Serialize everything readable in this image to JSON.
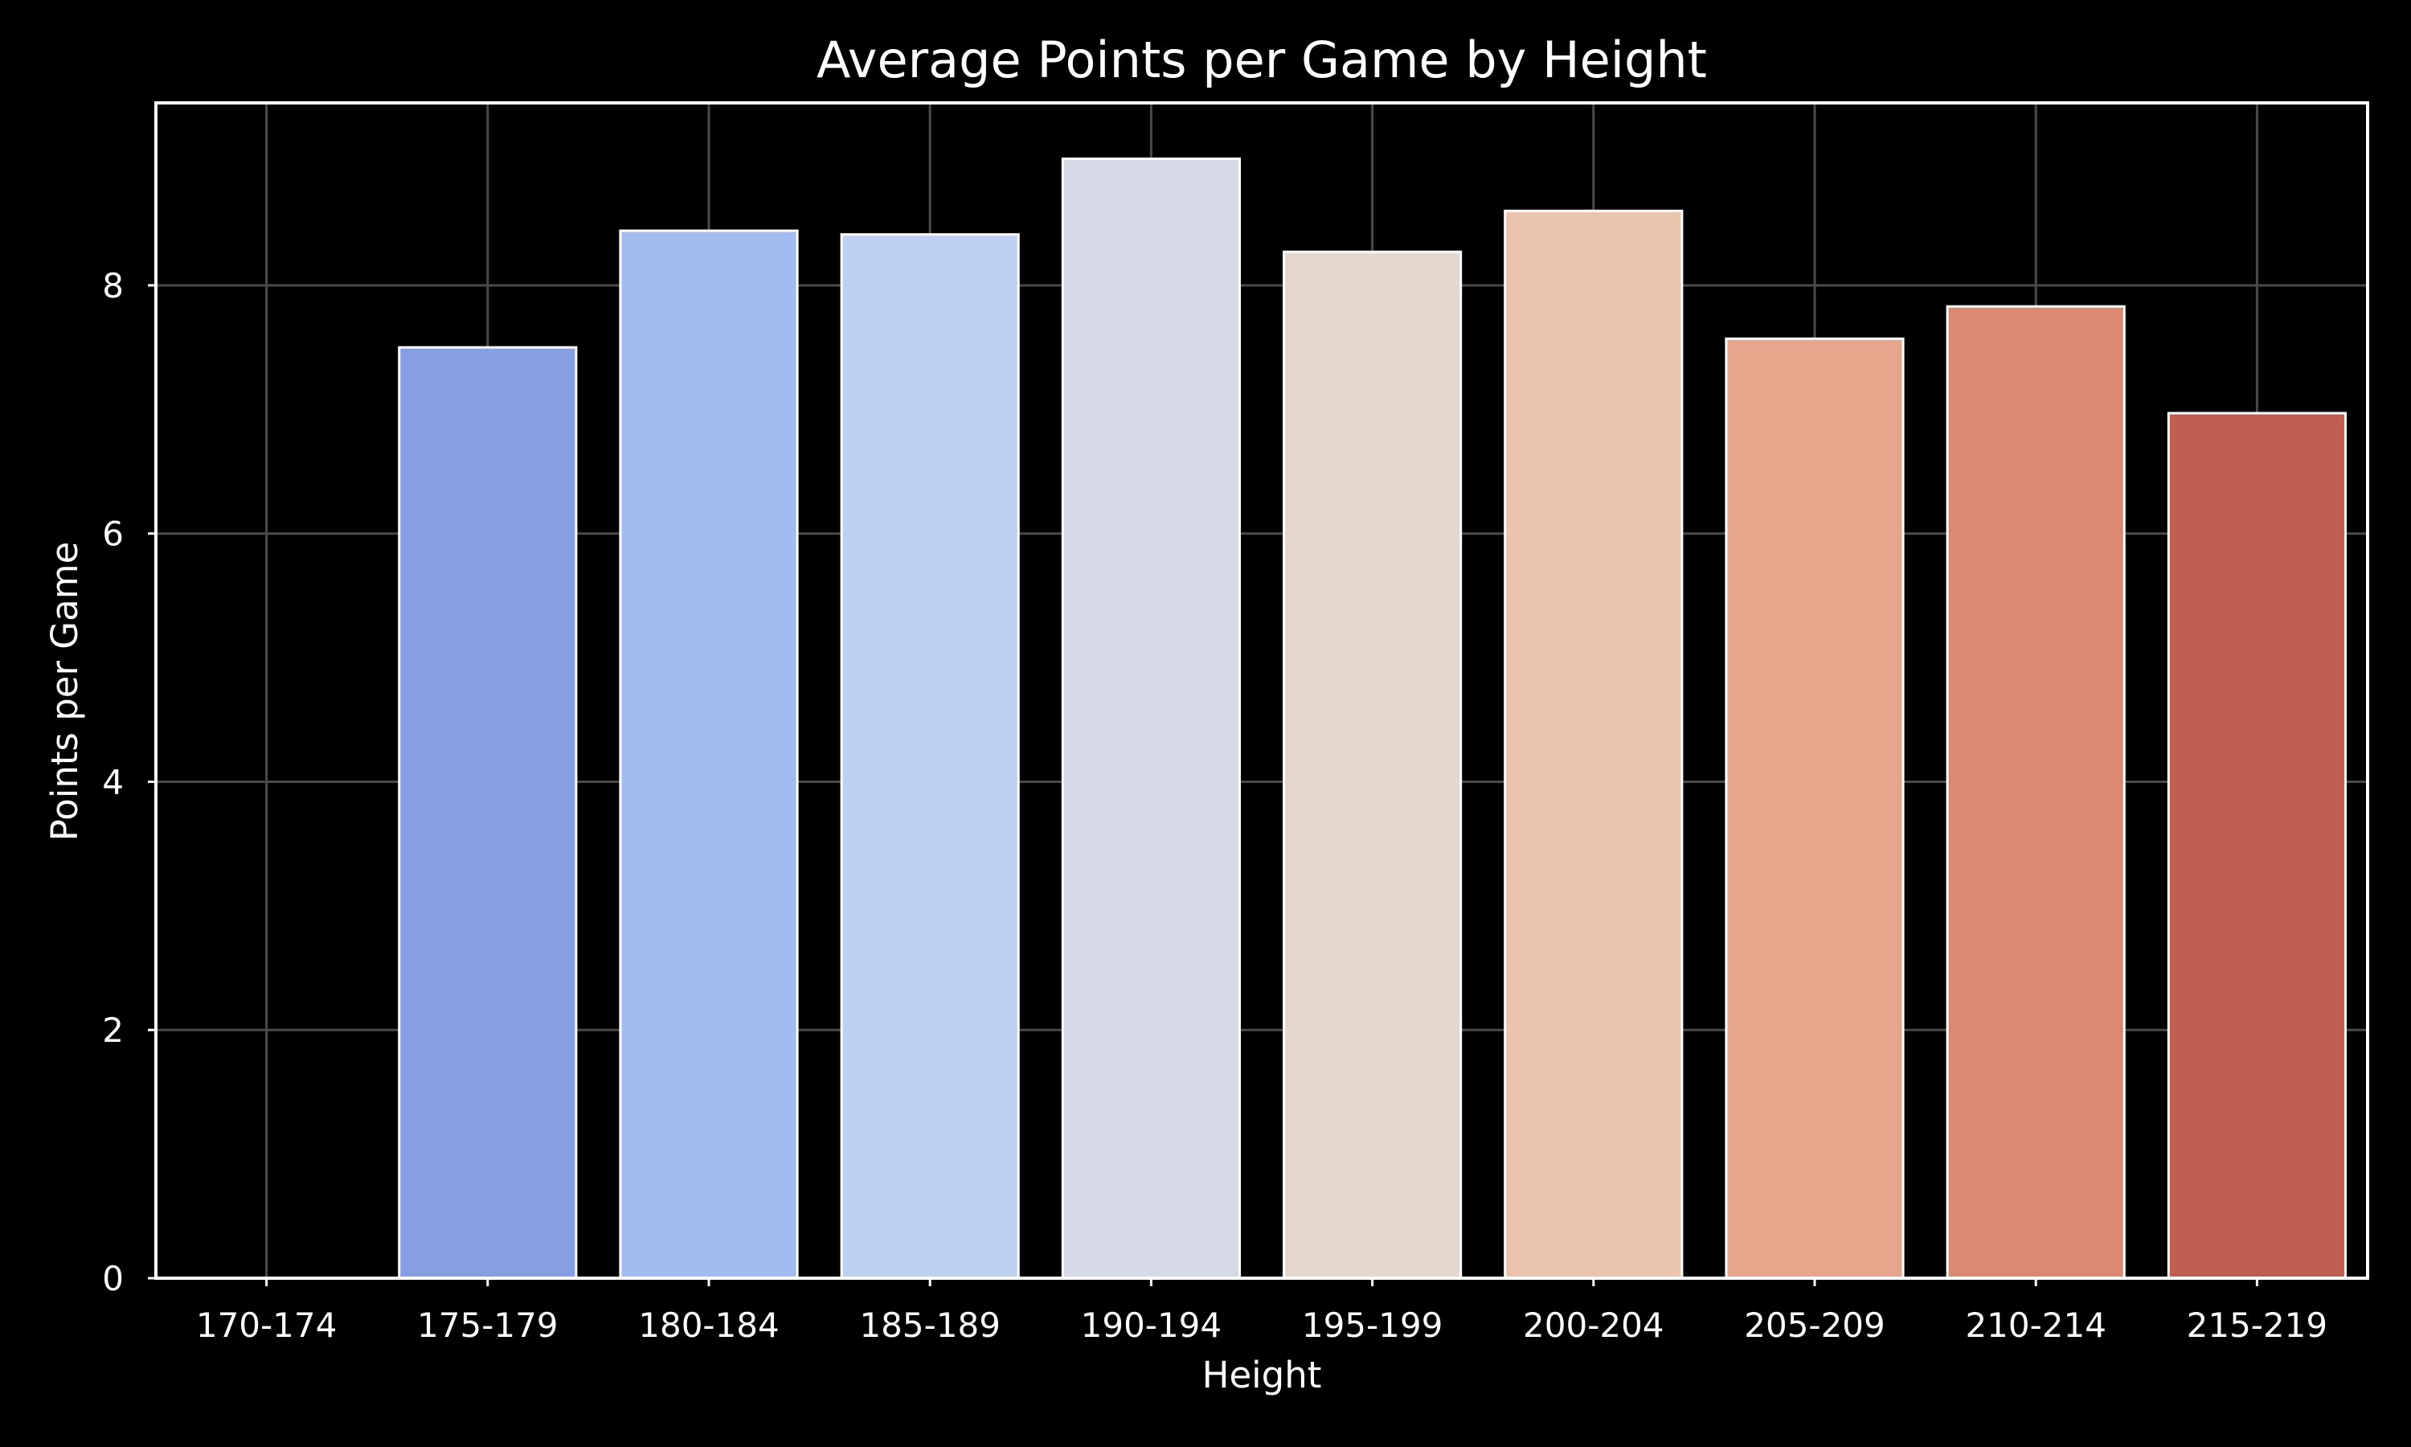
{
  "chart_data": {
    "type": "bar",
    "title": "Average Points per Game by Height",
    "xlabel": "Height",
    "ylabel": "Points per Game",
    "categories": [
      "170-174",
      "175-179",
      "180-184",
      "185-189",
      "190-194",
      "195-199",
      "200-204",
      "205-209",
      "210-214",
      "215-219"
    ],
    "values": [
      0,
      7.5,
      8.44,
      8.41,
      9.02,
      8.27,
      8.6,
      7.57,
      7.83,
      6.97
    ],
    "colors": [
      "#3b4cc0",
      "#869fe3",
      "#a2bbf0",
      "#bcd0f2",
      "#d5dae6",
      "#e4d8cf",
      "#ebc4ae",
      "#e5a68c",
      "#d98971",
      "#c05e53"
    ],
    "ylim": [
      0,
      9.47
    ],
    "yticks": [
      0,
      2,
      4,
      6,
      8
    ],
    "grid": true,
    "background": "#000000",
    "text_color": "#ffffff",
    "grid_color": "#4a4a4a"
  }
}
